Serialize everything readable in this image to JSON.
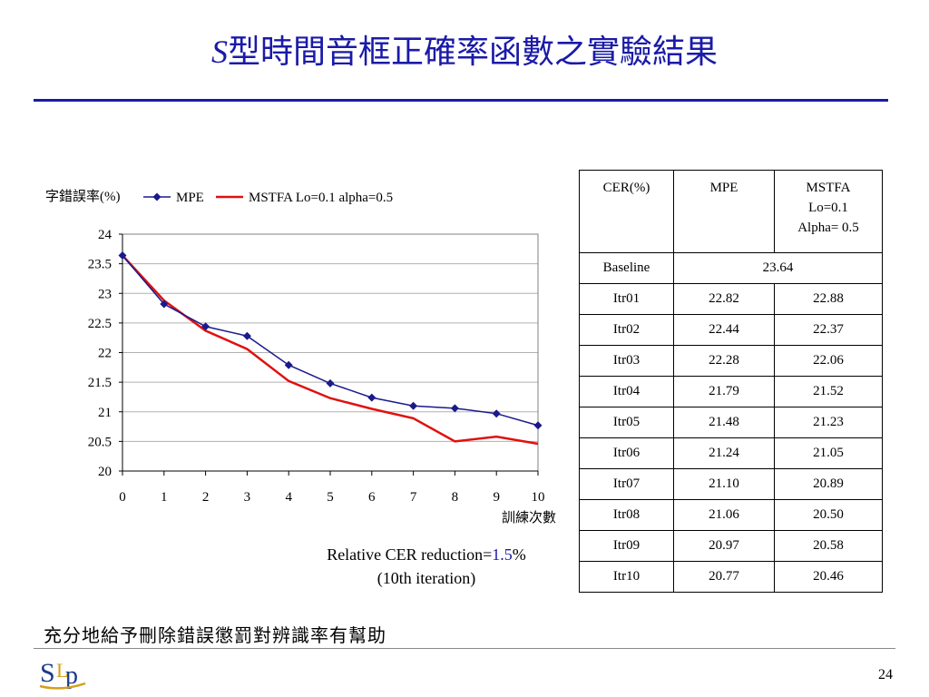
{
  "slide": {
    "title_italic": "S",
    "title_rest": "型時間音框正確率函數之實驗結果",
    "conclusion": "充分地給予刪除錯誤懲罰對辨識率有幫助",
    "page_number": "24",
    "logo_text": "SLP"
  },
  "reduction": {
    "prefix": "Relative CER reduction=",
    "value": "1.5",
    "suffix": "%",
    "line2": "(10th iteration)"
  },
  "table": {
    "headers": [
      "CER(%)",
      "MPE",
      "MSTFA Lo=0.1 Alpha= 0.5"
    ],
    "header_lines": [
      "MSTFA",
      "Lo=0.1",
      "Alpha= 0.5"
    ],
    "baseline": {
      "label": "Baseline",
      "value": "23.64"
    },
    "rows": [
      {
        "label": "Itr01",
        "mpe": "22.82",
        "mstfa": "22.88"
      },
      {
        "label": "Itr02",
        "mpe": "22.44",
        "mstfa": "22.37"
      },
      {
        "label": "Itr03",
        "mpe": "22.28",
        "mstfa": "22.06"
      },
      {
        "label": "Itr04",
        "mpe": "21.79",
        "mstfa": "21.52"
      },
      {
        "label": "Itr05",
        "mpe": "21.48",
        "mstfa": "21.23"
      },
      {
        "label": "Itr06",
        "mpe": "21.24",
        "mstfa": "21.05"
      },
      {
        "label": "Itr07",
        "mpe": "21.10",
        "mstfa": "20.89"
      },
      {
        "label": "Itr08",
        "mpe": "21.06",
        "mstfa": "20.50"
      },
      {
        "label": "Itr09",
        "mpe": "20.97",
        "mstfa": "20.58"
      },
      {
        "label": "Itr10",
        "mpe": "20.77",
        "mstfa": "20.46"
      }
    ]
  },
  "chart_data": {
    "type": "line",
    "ylabel": "字錯誤率(%)",
    "xlabel": "訓練次數",
    "x": [
      0,
      1,
      2,
      3,
      4,
      5,
      6,
      7,
      8,
      9,
      10
    ],
    "xlim": [
      0,
      10
    ],
    "ylim": [
      20,
      24
    ],
    "yticks": [
      "24",
      "23.5",
      "23",
      "22.5",
      "22",
      "21.5",
      "21",
      "20.5",
      "20"
    ],
    "xticks": [
      "0",
      "1",
      "2",
      "3",
      "4",
      "5",
      "6",
      "7",
      "8",
      "9",
      "10"
    ],
    "grid": true,
    "legend_position": "top",
    "series": [
      {
        "name": "MPE",
        "color": "#1a1a8c",
        "marker": "diamond",
        "values": [
          23.64,
          22.82,
          22.44,
          22.28,
          21.79,
          21.48,
          21.24,
          21.1,
          21.06,
          20.97,
          20.77
        ]
      },
      {
        "name": "MSTFA Lo=0.1 alpha=0.5",
        "color": "#e01010",
        "marker": "none",
        "values": [
          23.64,
          22.88,
          22.37,
          22.06,
          21.52,
          21.23,
          21.05,
          20.89,
          20.5,
          20.58,
          20.46
        ]
      }
    ]
  }
}
